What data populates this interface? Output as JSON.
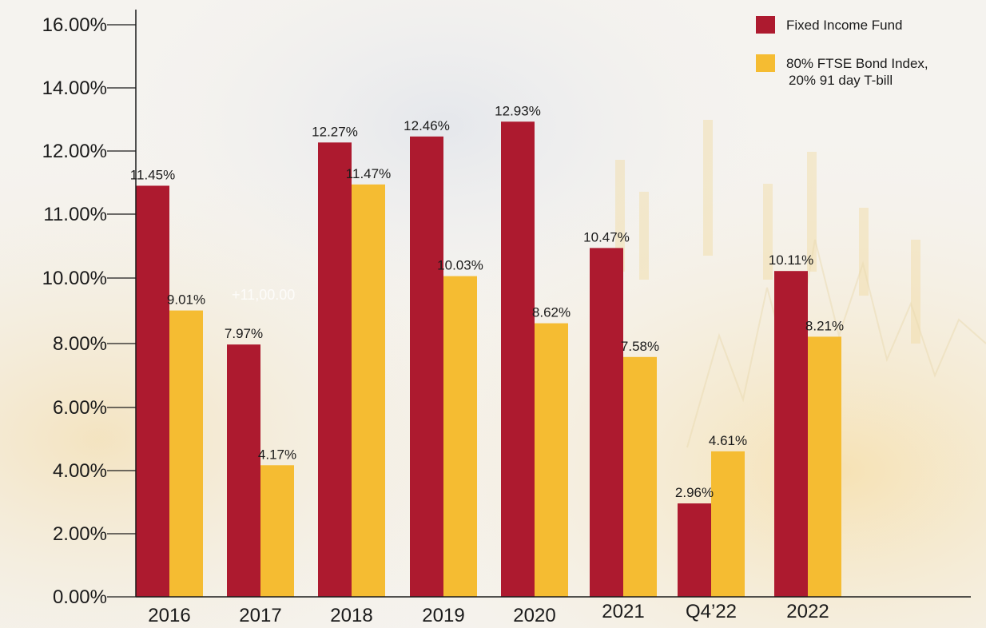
{
  "chart_data": {
    "type": "bar",
    "categories": [
      "2016",
      "2017",
      "2018",
      "2019",
      "2020",
      "2021",
      "Q4’22",
      "2022"
    ],
    "series": [
      {
        "name": "Fixed Income Fund",
        "color": "#ad1a2f",
        "values": [
          11.45,
          7.97,
          12.27,
          12.46,
          12.93,
          10.47,
          2.96,
          10.11
        ],
        "labels": [
          "11.45%",
          "7.97%",
          "12.27%",
          "12.46%",
          "12.93%",
          "10.47%",
          "2.96%",
          "10.11%"
        ]
      },
      {
        "name": "80% FTSE Bond Index, 20% 91 day T-bill",
        "legend_lines": [
          "80% FTSE Bond Index,",
          "20% 91 day T-bill"
        ],
        "color": "#f5bc32",
        "values": [
          9.01,
          4.17,
          11.47,
          10.03,
          8.62,
          7.58,
          4.61,
          8.21
        ],
        "labels": [
          "9.01%",
          "4.17%",
          "11.47%",
          "10.03%",
          "8.62%",
          "7.58%",
          "4.61%",
          "8.21%"
        ]
      }
    ],
    "y_ticks": [
      {
        "value": 0,
        "label": "0.00%"
      },
      {
        "value": 2,
        "label": "2.00%"
      },
      {
        "value": 4,
        "label": "4.00%"
      },
      {
        "value": 6,
        "label": "6.00%"
      },
      {
        "value": 8,
        "label": "8.00%"
      },
      {
        "value": 10,
        "label": "10.00%"
      },
      {
        "value": 11,
        "label": "11.00%"
      },
      {
        "value": 12,
        "label": "12.00%"
      },
      {
        "value": 14,
        "label": "14.00%"
      },
      {
        "value": 16,
        "label": "16.00%"
      }
    ],
    "legend_position": "top-right",
    "grid": false,
    "title": "",
    "xlabel": "",
    "ylabel": ""
  },
  "background_text": "+11,00.00"
}
